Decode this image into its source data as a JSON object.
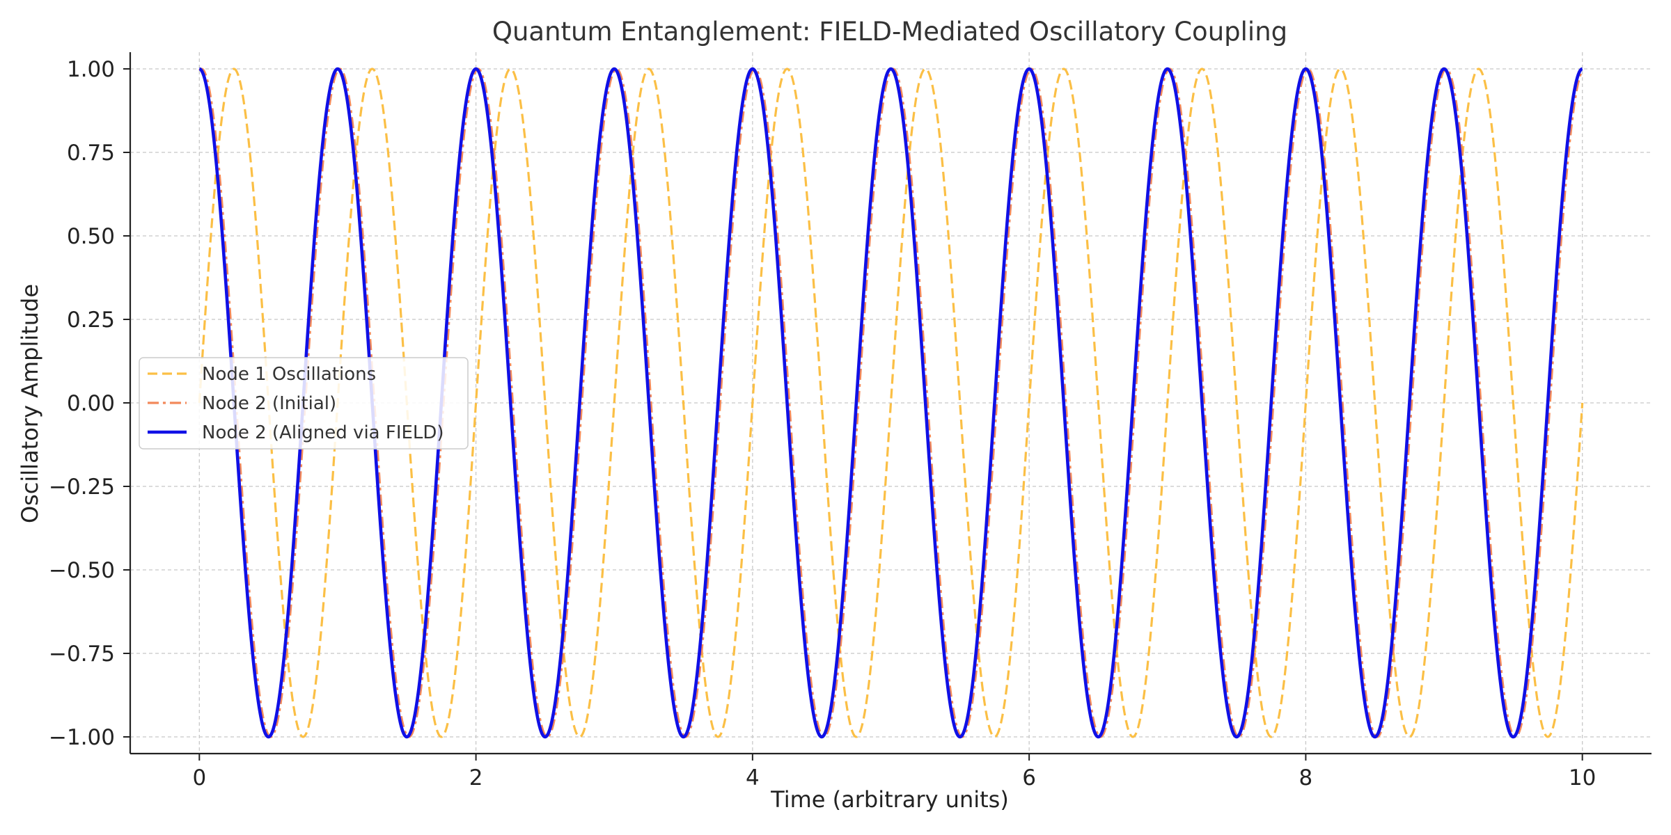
{
  "chart_data": {
    "type": "line",
    "title": "Quantum Entanglement: FIELD-Mediated Oscillatory Coupling",
    "xlabel": "Time (arbitrary units)",
    "ylabel": "Oscillatory Amplitude",
    "xlim": [
      -0.5,
      10.5
    ],
    "ylim": [
      -1.05,
      1.05
    ],
    "xticks": [
      0,
      2,
      4,
      6,
      8,
      10
    ],
    "xtick_labels": [
      "0",
      "2",
      "4",
      "6",
      "8",
      "10"
    ],
    "yticks": [
      1.0,
      0.75,
      0.5,
      0.25,
      0.0,
      -0.25,
      -0.5,
      -0.75,
      -1.0
    ],
    "ytick_labels": [
      "1.00",
      "0.75",
      "0.50",
      "0.25",
      "0.00",
      "−0.25",
      "−0.50",
      "−0.75",
      "−1.00"
    ],
    "grid": true,
    "legend_position": "center-left",
    "series": [
      {
        "name": "Node 1 Oscillations",
        "color": "#FBBF45",
        "style": "dashed",
        "function": "sin(2*pi*t)",
        "x": [
          0,
          0.25,
          0.5,
          0.75,
          1,
          1.25,
          1.5,
          1.75,
          2,
          2.25,
          2.5,
          2.75,
          3,
          3.25,
          3.5,
          3.75,
          4,
          4.25,
          4.5,
          4.75,
          5,
          5.25,
          5.5,
          5.75,
          6,
          6.25,
          6.5,
          6.75,
          7,
          7.25,
          7.5,
          7.75,
          8,
          8.25,
          8.5,
          8.75,
          9,
          9.25,
          9.5,
          9.75,
          10
        ],
        "values": [
          0,
          1,
          0,
          -1,
          0,
          1,
          0,
          -1,
          0,
          1,
          0,
          -1,
          0,
          1,
          0,
          -1,
          0,
          1,
          0,
          -1,
          0,
          1,
          0,
          -1,
          0,
          1,
          0,
          -1,
          0,
          1,
          0,
          -1,
          0,
          1,
          0,
          -1,
          0,
          1,
          0,
          -1,
          0
        ]
      },
      {
        "name": "Node 2 (Initial)",
        "color": "#F2895B",
        "style": "dashdot",
        "function": "cos(2*pi*t - 0.1)",
        "x": [
          0,
          0.25,
          0.5,
          0.75,
          1,
          1.25,
          1.5,
          1.75,
          2,
          2.25,
          2.5,
          2.75,
          3,
          3.25,
          3.5,
          3.75,
          4,
          4.25,
          4.5,
          4.75,
          5,
          5.25,
          5.5,
          5.75,
          6,
          6.25,
          6.5,
          6.75,
          7,
          7.25,
          7.5,
          7.75,
          8,
          8.25,
          8.5,
          8.75,
          9,
          9.25,
          9.5,
          9.75,
          10
        ],
        "values": [
          1,
          0,
          -1,
          0,
          1,
          0,
          -1,
          0,
          1,
          0,
          -1,
          0,
          1,
          0,
          -1,
          0,
          1,
          0,
          -1,
          0,
          1,
          0,
          -1,
          0,
          1,
          0,
          -1,
          0,
          1,
          0,
          -1,
          0,
          1,
          0,
          -1,
          0,
          1,
          0,
          -1,
          0,
          1
        ]
      },
      {
        "name": "Node 2 (Aligned via FIELD)",
        "color": "#1010E6",
        "style": "solid",
        "function": "cos(2*pi*t)",
        "x": [
          0,
          0.25,
          0.5,
          0.75,
          1,
          1.25,
          1.5,
          1.75,
          2,
          2.25,
          2.5,
          2.75,
          3,
          3.25,
          3.5,
          3.75,
          4,
          4.25,
          4.5,
          4.75,
          5,
          5.25,
          5.5,
          5.75,
          6,
          6.25,
          6.5,
          6.75,
          7,
          7.25,
          7.5,
          7.75,
          8,
          8.25,
          8.5,
          8.75,
          9,
          9.25,
          9.5,
          9.75,
          10
        ],
        "values": [
          1,
          0,
          -1,
          0,
          1,
          0,
          -1,
          0,
          1,
          0,
          -1,
          0,
          1,
          0,
          -1,
          0,
          1,
          0,
          -1,
          0,
          1,
          0,
          -1,
          0,
          1,
          0,
          -1,
          0,
          1,
          0,
          -1,
          0,
          1,
          0,
          -1,
          0,
          1,
          0,
          -1,
          0,
          1
        ]
      }
    ]
  }
}
